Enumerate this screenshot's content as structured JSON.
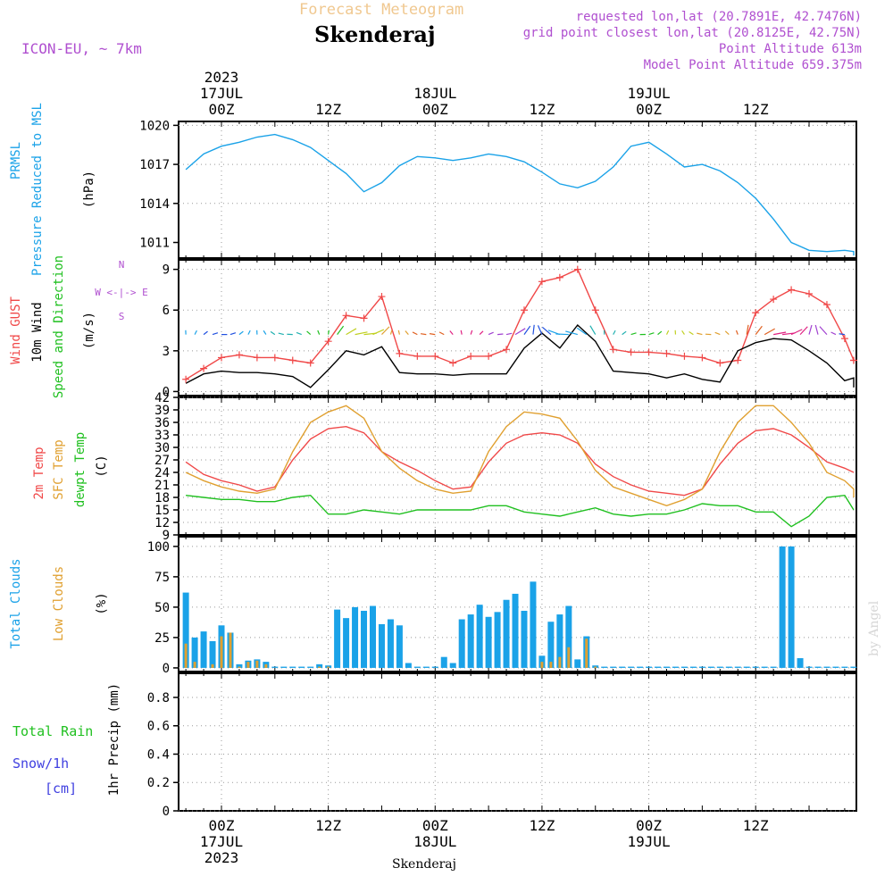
{
  "colors": {
    "pressure": "#1aa2e8",
    "gust": "#f04848",
    "wind": "#000000",
    "t2m": "#f04848",
    "sfc": "#e0a030",
    "dewpt": "#20c020",
    "total_clouds": "#1aa2e8",
    "low_clouds": "#e0a030",
    "rain": "#20c020",
    "snow": "#4040e0",
    "meta": "#b050d0",
    "title_faint": "#f0c890"
  },
  "header": {
    "product": "Forecast Meteogram",
    "station": "Skenderaj",
    "model": "ICON-EU, ~ 7km",
    "requested": "requested lon,lat (20.7891E, 42.7476N)",
    "grid_point": "grid point closest lon,lat (20.8125E, 42.75N)",
    "point_alt": "Point Altitude 613m",
    "model_alt": "Model Point Altitude 659.375m"
  },
  "time_axis": {
    "top_year": "2023",
    "top_days": [
      "17JUL",
      "18JUL",
      "19JUL"
    ],
    "top_hours": [
      "00Z",
      "12Z",
      "00Z",
      "12Z",
      "00Z",
      "12Z"
    ],
    "bottom_hours": [
      "00Z",
      "12Z",
      "00Z",
      "12Z",
      "00Z",
      "12Z"
    ],
    "bottom_days": [
      "17JUL",
      "18JUL",
      "19JUL"
    ],
    "bottom_year": "2023",
    "footer": "Skenderaj"
  },
  "panels": {
    "pressure": {
      "l1": "PRMSL",
      "l2": "Pressure Reduced to MSL",
      "unit": "(hPa)",
      "ticks": [
        "1020",
        "1017",
        "1014",
        "1011"
      ]
    },
    "wind": {
      "l1": "Wind GUST",
      "l2": "10m Wind",
      "l3": "Speed and Direction",
      "unit": "(m/s)",
      "compass": [
        "N",
        "W <-|-> E",
        "S"
      ],
      "ticks": [
        "9",
        "6",
        "3",
        "0"
      ]
    },
    "temp": {
      "l1": "2m Temp",
      "l2": "SFC Temp",
      "l3": "dewpt Temp",
      "unit": "(C)",
      "ticks": [
        "42",
        "39",
        "36",
        "33",
        "30",
        "27",
        "24",
        "21",
        "18",
        "15",
        "12",
        "9"
      ]
    },
    "clouds": {
      "l1": "Total Clouds",
      "l2": "Low Clouds",
      "unit": "(%)",
      "ticks": [
        "100",
        "75",
        "50",
        "25",
        "0"
      ]
    },
    "precip": {
      "l1": "Total  Rain",
      "l2": "Snow/1h",
      "l3": "[cm]",
      "unit": "1hr Precip (mm)",
      "ticks": [
        "0.8",
        "0.6",
        "0.4",
        "0.2",
        "0"
      ]
    }
  },
  "signature": "by Angel",
  "chart_data": [
    {
      "type": "line",
      "ylabel": "PRMSL Pressure Reduced to MSL (hPa)",
      "x_hours_from_17JUL_00Z": [
        -4,
        -2,
        0,
        2,
        4,
        6,
        8,
        10,
        12,
        14,
        16,
        18,
        20,
        22,
        24,
        26,
        28,
        30,
        32,
        34,
        36,
        38,
        40,
        42,
        44,
        46,
        48,
        50,
        52,
        54,
        56,
        58,
        60,
        62,
        64,
        66,
        68,
        70,
        72,
        73
      ],
      "ylim": [
        1009.8,
        1020.3
      ],
      "series": [
        {
          "name": "PRMSL",
          "values": [
            1016.6,
            1017.8,
            1018.4,
            1018.7,
            1019.1,
            1019.3,
            1018.9,
            1018.3,
            1017.3,
            1016.3,
            1014.9,
            1015.6,
            1016.9,
            1017.6,
            1017.5,
            1017.3,
            1017.5,
            1017.8,
            1017.6,
            1017.2,
            1016.4,
            1015.5,
            1015.2,
            1015.7,
            1016.8,
            1018.4,
            1018.7,
            1017.8,
            1016.8,
            1017.0,
            1016.5,
            1015.6,
            1014.4,
            1012.8,
            1011.0,
            1010.4,
            1010.3,
            1010.4,
            1010.3,
            1010.0
          ]
        }
      ]
    },
    {
      "type": "line",
      "ylabel": "Wind GUST / 10m Wind Speed and Direction (m/s)",
      "x_hours_from_17JUL_00Z": [
        -4,
        -2,
        0,
        2,
        4,
        6,
        8,
        10,
        12,
        14,
        16,
        18,
        20,
        22,
        24,
        26,
        28,
        30,
        32,
        34,
        36,
        38,
        40,
        42,
        44,
        46,
        48,
        50,
        52,
        54,
        56,
        58,
        60,
        62,
        64,
        66,
        68,
        70,
        72,
        73
      ],
      "ylim": [
        -0.3,
        9.7
      ],
      "series": [
        {
          "name": "Wind GUST",
          "values": [
            0.9,
            1.7,
            2.5,
            2.7,
            2.5,
            2.5,
            2.3,
            2.1,
            3.7,
            5.6,
            5.4,
            7.0,
            2.8,
            2.6,
            2.6,
            2.1,
            2.6,
            2.6,
            3.1,
            6.0,
            8.1,
            8.4,
            9.0,
            6.0,
            3.1,
            2.9,
            2.9,
            2.8,
            2.6,
            2.5,
            2.1,
            2.3,
            5.8,
            6.8,
            7.5,
            7.2,
            6.4,
            3.9,
            2.3,
            2.3
          ]
        },
        {
          "name": "10m Wind",
          "values": [
            0.6,
            1.3,
            1.5,
            1.4,
            1.4,
            1.3,
            1.1,
            0.3,
            1.6,
            3.0,
            2.7,
            3.3,
            1.4,
            1.3,
            1.3,
            1.2,
            1.3,
            1.3,
            1.3,
            3.2,
            4.3,
            3.2,
            4.9,
            3.7,
            1.5,
            1.4,
            1.3,
            1.0,
            1.3,
            0.9,
            0.7,
            3.0,
            3.6,
            3.9,
            3.8,
            3.0,
            2.1,
            0.8,
            1.0,
            0.3
          ]
        }
      ]
    },
    {
      "type": "line",
      "ylabel": "2m Temp / SFC Temp / dewpt Temp (C)",
      "x_hours_from_17JUL_00Z": [
        -4,
        -2,
        0,
        2,
        4,
        6,
        8,
        10,
        12,
        14,
        16,
        18,
        20,
        22,
        24,
        26,
        28,
        30,
        32,
        34,
        36,
        38,
        40,
        42,
        44,
        46,
        48,
        50,
        52,
        54,
        56,
        58,
        60,
        62,
        64,
        66,
        68,
        70,
        72,
        73
      ],
      "ylim": [
        9,
        42
      ],
      "series": [
        {
          "name": "2m Temp",
          "values": [
            26.5,
            23.5,
            22.0,
            21.0,
            19.5,
            20.5,
            27.0,
            32.0,
            34.5,
            35.0,
            33.5,
            29.0,
            26.5,
            24.5,
            22.0,
            20.0,
            20.5,
            26.5,
            31.0,
            33.0,
            33.5,
            33.0,
            31.0,
            26.0,
            23.0,
            21.0,
            19.5,
            19.0,
            18.5,
            20.0,
            26.0,
            31.0,
            34.0,
            34.5,
            33.0,
            30.0,
            26.5,
            25.0,
            24.0,
            24.0
          ]
        },
        {
          "name": "SFC Temp",
          "values": [
            24.0,
            22.0,
            20.5,
            19.5,
            19.0,
            20.0,
            29.0,
            36.0,
            38.5,
            40.0,
            37.0,
            29.0,
            25.0,
            22.0,
            20.0,
            19.0,
            19.5,
            29.0,
            35.0,
            38.5,
            38.0,
            37.0,
            31.5,
            24.5,
            20.5,
            19.0,
            17.5,
            16.0,
            17.5,
            20.0,
            29.0,
            36.0,
            40.0,
            40.0,
            36.0,
            31.0,
            24.0,
            22.0,
            20.0,
            18.0
          ]
        },
        {
          "name": "dewpt Temp",
          "values": [
            18.5,
            18.0,
            17.5,
            17.5,
            17.0,
            17.0,
            18.0,
            18.5,
            14.0,
            14.0,
            15.0,
            14.5,
            14.0,
            15.0,
            15.0,
            15.0,
            15.0,
            16.0,
            16.0,
            14.5,
            14.0,
            13.5,
            14.5,
            15.5,
            14.0,
            13.5,
            14.0,
            14.0,
            15.0,
            16.5,
            16.0,
            16.0,
            14.5,
            14.5,
            11.0,
            13.5,
            18.0,
            18.5,
            15.0,
            15.0
          ]
        }
      ]
    },
    {
      "type": "bar",
      "ylabel": "Total Clouds / Low Clouds (%)",
      "x_hours_from_17JUL_00Z": [
        -5,
        -4,
        -3,
        -2,
        -1,
        0,
        1,
        2,
        3,
        4,
        5,
        6,
        7,
        8,
        9,
        10,
        11,
        12,
        13,
        14,
        15,
        16,
        17,
        18,
        19,
        20,
        21,
        22,
        23,
        24,
        25,
        26,
        27,
        28,
        29,
        30,
        31,
        32,
        33,
        34,
        35,
        36,
        37,
        38,
        39,
        40,
        41,
        42,
        43,
        44,
        45,
        46,
        47,
        48,
        49,
        50,
        51,
        52,
        53,
        54,
        55,
        56,
        57,
        58,
        59,
        60,
        61,
        62,
        63,
        64,
        65,
        66,
        67,
        68,
        69,
        70,
        71,
        72
      ],
      "ylim": [
        0,
        100
      ],
      "series": [
        {
          "name": "Total Clouds",
          "values": [
            35,
            62,
            25,
            30,
            22,
            35,
            29,
            3,
            6,
            7,
            5,
            1,
            1,
            1,
            1,
            1,
            3,
            2,
            48,
            41,
            50,
            47,
            51,
            36,
            40,
            35,
            4,
            1,
            1,
            1,
            9,
            4,
            40,
            44,
            52,
            42,
            46,
            56,
            61,
            47,
            71,
            10,
            38,
            44,
            51,
            7,
            26,
            2,
            1,
            1,
            1,
            1,
            1,
            1,
            1,
            1,
            1,
            1,
            1,
            1,
            1,
            1,
            1,
            1,
            1,
            1,
            1,
            1,
            100,
            100,
            8,
            1,
            1,
            1,
            1,
            1,
            1,
            3
          ]
        },
        {
          "name": "Low Clouds",
          "values": [
            3,
            20,
            5,
            0,
            3,
            26,
            29,
            1,
            5,
            6,
            3,
            0,
            0,
            0,
            0,
            0,
            1,
            1,
            0,
            0,
            0,
            0,
            0,
            0,
            0,
            0,
            0,
            0,
            0,
            0,
            0,
            0,
            0,
            0,
            0,
            0,
            0,
            0,
            0,
            0,
            0,
            5,
            5,
            9,
            17,
            0,
            24,
            1,
            0,
            0,
            0,
            0,
            0,
            0,
            0,
            0,
            0,
            0,
            0,
            0,
            0,
            0,
            0,
            0,
            0,
            0,
            0,
            0,
            0,
            0,
            0,
            0,
            0,
            0,
            0,
            0,
            0,
            0
          ]
        }
      ]
    },
    {
      "type": "bar",
      "ylabel": "1hr Precip (mm)",
      "ylim": [
        0,
        0.95
      ],
      "series": [
        {
          "name": "Total Rain",
          "values": []
        },
        {
          "name": "Snow/1h [cm]",
          "values": []
        }
      ]
    }
  ]
}
